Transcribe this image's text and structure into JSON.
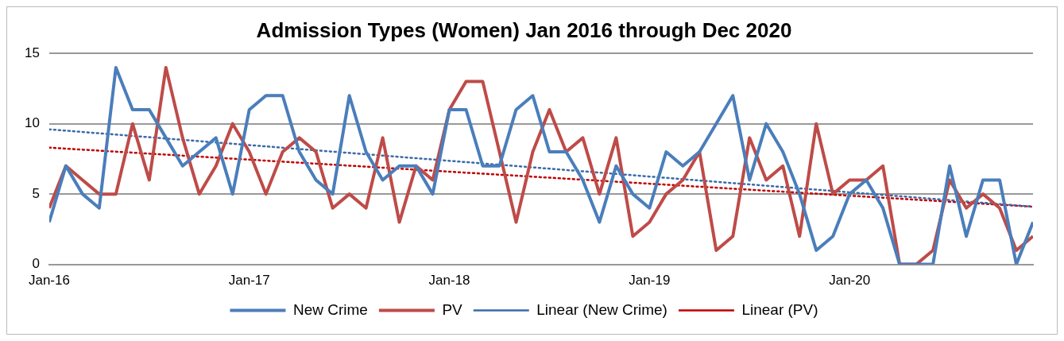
{
  "chart_data": {
    "type": "line",
    "title": "Admission Types (Women) Jan 2016 through Dec 2020",
    "x": [
      "2016-01",
      "2016-02",
      "2016-03",
      "2016-04",
      "2016-05",
      "2016-06",
      "2016-07",
      "2016-08",
      "2016-09",
      "2016-10",
      "2016-11",
      "2016-12",
      "2017-01",
      "2017-02",
      "2017-03",
      "2017-04",
      "2017-05",
      "2017-06",
      "2017-07",
      "2017-08",
      "2017-09",
      "2017-10",
      "2017-11",
      "2017-12",
      "2018-01",
      "2018-02",
      "2018-03",
      "2018-04",
      "2018-05",
      "2018-06",
      "2018-07",
      "2018-08",
      "2018-09",
      "2018-10",
      "2018-11",
      "2018-12",
      "2019-01",
      "2019-02",
      "2019-03",
      "2019-04",
      "2019-05",
      "2019-06",
      "2019-07",
      "2019-08",
      "2019-09",
      "2019-10",
      "2019-11",
      "2019-12",
      "2020-01",
      "2020-02",
      "2020-03",
      "2020-04",
      "2020-05",
      "2020-06",
      "2020-07",
      "2020-08",
      "2020-09",
      "2020-10",
      "2020-11",
      "2020-12"
    ],
    "series": [
      {
        "name": "New Crime",
        "color": "#4a7ebb",
        "line_style": "solid",
        "values": [
          3,
          7,
          5,
          4,
          14,
          11,
          11,
          9,
          7,
          8,
          9,
          5,
          11,
          12,
          12,
          8,
          6,
          5,
          12,
          8,
          6,
          7,
          7,
          5,
          11,
          11,
          7,
          7,
          11,
          12,
          8,
          8,
          6,
          3,
          7,
          5,
          4,
          8,
          7,
          8,
          10,
          12,
          6,
          10,
          8,
          5,
          1,
          2,
          5,
          6,
          4,
          0,
          0,
          0,
          7,
          2,
          6,
          6,
          0,
          3
        ]
      },
      {
        "name": "PV",
        "color": "#be4b48",
        "line_style": "solid",
        "values": [
          4,
          7,
          6,
          5,
          5,
          10,
          6,
          14,
          9,
          5,
          7,
          10,
          8,
          5,
          8,
          9,
          8,
          4,
          5,
          4,
          9,
          3,
          7,
          6,
          11,
          13,
          13,
          8,
          3,
          8,
          11,
          8,
          9,
          5,
          9,
          2,
          3,
          5,
          6,
          8,
          1,
          2,
          9,
          6,
          7,
          2,
          10,
          5,
          6,
          6,
          7,
          0,
          0,
          1,
          6,
          4,
          5,
          4,
          1,
          2
        ]
      },
      {
        "name": "Linear (New Crime)",
        "color": "#3a6aa8",
        "line_style": "dotted",
        "x": [
          "2016-01",
          "2020-12"
        ],
        "values": [
          9.6,
          4.1
        ]
      },
      {
        "name": "Linear (PV)",
        "color": "#c00000",
        "line_style": "dotted",
        "x": [
          "2016-01",
          "2020-12"
        ],
        "values": [
          8.3,
          4.1
        ]
      }
    ],
    "xlim": [
      "2016-01",
      "2020-12"
    ],
    "xticks": [
      {
        "value": "2016-01",
        "label": "Jan-16"
      },
      {
        "value": "2017-01",
        "label": "Jan-17"
      },
      {
        "value": "2018-01",
        "label": "Jan-18"
      },
      {
        "value": "2019-01",
        "label": "Jan-19"
      },
      {
        "value": "2020-01",
        "label": "Jan-20"
      }
    ],
    "ylim": [
      0,
      15
    ],
    "yticks": [
      0,
      5,
      10,
      15
    ],
    "grid": "y",
    "legend": "bottom",
    "marker": "none"
  }
}
